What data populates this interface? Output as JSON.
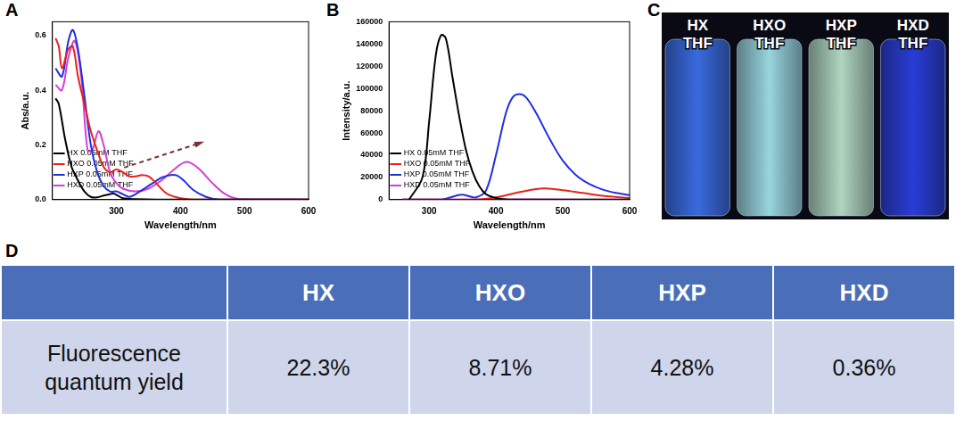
{
  "panel_labels": [
    "A",
    "B",
    "C",
    "D"
  ],
  "chart_data": [
    {
      "type": "line",
      "x_label": "Wavelength/nm",
      "y_label": "Abs/a.u.",
      "xlim": [
        200,
        600
      ],
      "xticks": [
        300,
        400,
        500,
        600
      ],
      "ylim": [
        0,
        0.65
      ],
      "yticks": [
        {
          "value": 0,
          "label": "0.0"
        },
        {
          "value": 0.2,
          "label": "0.2"
        },
        {
          "value": 0.4,
          "label": "0.4"
        },
        {
          "value": 0.6,
          "label": "0.6"
        }
      ],
      "grid": false,
      "legend": "upper right",
      "series": [
        {
          "name": "HX 0.05mM THF",
          "color": "#000000",
          "x": [
            205,
            210,
            220,
            230,
            240,
            250,
            260,
            270,
            280,
            290,
            295,
            300,
            310,
            330,
            400,
            600
          ],
          "values": [
            0.37,
            0.35,
            0.22,
            0.12,
            0.07,
            0.03,
            0.01,
            0.008,
            0.015,
            0.02,
            0.022,
            0.018,
            0.005,
            0.002,
            0,
            0
          ]
        },
        {
          "name": "HXO 0.05mM THF",
          "color": "#e8211c",
          "x": [
            205,
            210,
            215,
            225,
            232,
            240,
            250,
            260,
            270,
            280,
            290,
            300,
            310,
            320,
            330,
            340,
            350,
            360,
            370,
            380,
            400,
            420,
            600
          ],
          "values": [
            0.59,
            0.56,
            0.48,
            0.55,
            0.56,
            0.45,
            0.35,
            0.25,
            0.18,
            0.12,
            0.1,
            0.11,
            0.1,
            0.085,
            0.085,
            0.09,
            0.085,
            0.065,
            0.04,
            0.02,
            0.005,
            0,
            0
          ]
        },
        {
          "name": "HXP 0.05mM THF",
          "color": "#1f2fe0",
          "x": [
            205,
            215,
            225,
            232,
            240,
            250,
            260,
            270,
            280,
            290,
            300,
            310,
            320,
            330,
            340,
            350,
            360,
            370,
            385,
            395,
            405,
            420,
            440,
            460,
            600
          ],
          "values": [
            0.48,
            0.45,
            0.58,
            0.62,
            0.55,
            0.38,
            0.2,
            0.1,
            0.05,
            0.03,
            0.03,
            0.02,
            0.01,
            0.02,
            0.035,
            0.05,
            0.065,
            0.08,
            0.09,
            0.088,
            0.07,
            0.035,
            0.01,
            0,
            0
          ]
        },
        {
          "name": "HXD 0.05mM THF",
          "color": "#d43fd4",
          "x": [
            205,
            215,
            225,
            235,
            245,
            255,
            262,
            272,
            280,
            290,
            300,
            310,
            330,
            350,
            370,
            390,
            405,
            415,
            430,
            450,
            470,
            490,
            600
          ],
          "values": [
            0.42,
            0.4,
            0.52,
            0.58,
            0.45,
            0.18,
            0.18,
            0.25,
            0.2,
            0.1,
            0.06,
            0.04,
            0.03,
            0.04,
            0.07,
            0.11,
            0.135,
            0.135,
            0.11,
            0.06,
            0.02,
            0.003,
            0
          ]
        }
      ]
    },
    {
      "type": "line",
      "x_label": "Wavelength/nm",
      "y_label": "Intensity/a.u.",
      "xlim": [
        240,
        600
      ],
      "xticks": [
        300,
        400,
        500,
        600
      ],
      "ylim": [
        0,
        160000
      ],
      "yticks": [
        0,
        20000,
        40000,
        60000,
        80000,
        100000,
        120000,
        140000,
        160000
      ],
      "grid": false,
      "legend": "upper right",
      "series": [
        {
          "name": "HX 0.05mM THF",
          "color": "#000000",
          "x": [
            270,
            290,
            300,
            310,
            318,
            325,
            335,
            345,
            355,
            365,
            375,
            385,
            400,
            420,
            600
          ],
          "values": [
            0,
            20000,
            70000,
            130000,
            148000,
            145000,
            110000,
            75000,
            45000,
            25000,
            12000,
            5000,
            1500,
            0,
            0
          ]
        },
        {
          "name": "HXO 0.05mM THF",
          "color": "#e8211c",
          "x": [
            260,
            350,
            380,
            400,
            430,
            460,
            475,
            500,
            530,
            560,
            600
          ],
          "values": [
            0,
            0,
            500,
            2000,
            6000,
            9500,
            10000,
            8500,
            6000,
            3500,
            1500
          ]
        },
        {
          "name": "HXP 0.05mM THF",
          "color": "#1f2fe0",
          "x": [
            260,
            320,
            340,
            350,
            360,
            370,
            385,
            400,
            415,
            425,
            435,
            445,
            460,
            480,
            500,
            520,
            540,
            560,
            580,
            600
          ],
          "values": [
            0,
            300,
            3500,
            4500,
            3000,
            2000,
            8000,
            40000,
            78000,
            92000,
            95000,
            92000,
            78000,
            55000,
            35000,
            22000,
            14000,
            9000,
            6000,
            4000
          ]
        },
        {
          "name": "HXD 0.05mM THF",
          "color": "#d43fd4",
          "x": [
            260,
            450,
            600
          ],
          "values": [
            0,
            200,
            0
          ]
        }
      ]
    }
  ],
  "photo": {
    "vials": [
      {
        "label": "HX THF",
        "color": "#3b6fe8"
      },
      {
        "label": "HXO THF",
        "color": "#9fe0e8"
      },
      {
        "label": "HXP THF",
        "color": "#b8e0c8"
      },
      {
        "label": "HXD THF",
        "color": "#2a3fe0"
      }
    ]
  },
  "table": {
    "columns": [
      "HX",
      "HXO",
      "HXP",
      "HXD"
    ],
    "rows": [
      {
        "label": "Fluorescence quantum yield",
        "values": [
          "22.3%",
          "8.71%",
          "4.28%",
          "0.36%"
        ]
      }
    ]
  }
}
